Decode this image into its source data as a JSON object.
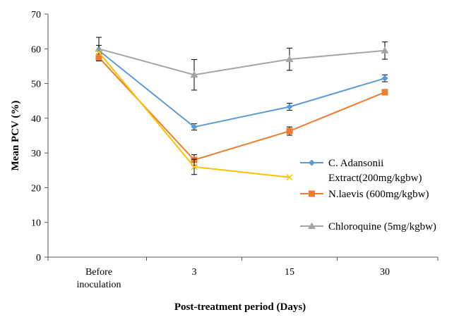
{
  "chart_data": {
    "type": "line",
    "title": "",
    "xlabel": "Post-treatment period (Days)",
    "ylabel": "Mean PCV (%)",
    "ylim": [
      0,
      70
    ],
    "yticks": [
      0,
      10,
      20,
      30,
      40,
      50,
      60,
      70
    ],
    "categories": [
      [
        "Before",
        "inoculation"
      ],
      [
        "3"
      ],
      [
        "15"
      ],
      [
        "30"
      ]
    ],
    "grid": false,
    "legend_position": "right",
    "series": [
      {
        "name": "Chloroquine (5mg/kgbw)",
        "legend_lines": [
          "Chloroquine (5mg/kgbw)"
        ],
        "values": [
          60,
          52.5,
          57,
          59.5
        ],
        "errors": [
          3.3,
          4.4,
          3.2,
          2.5
        ],
        "color": "#a5a5a5",
        "marker": "triangle"
      },
      {
        "name": "C. Adansonii Extract(200mg/kgbw)",
        "legend_lines": [
          "C. Adansonii",
          "Extract(200mg/kgbw)"
        ],
        "values": [
          59.5,
          37.5,
          43.3,
          51.5
        ],
        "errors": [
          1.5,
          0.9,
          1.0,
          1.0
        ],
        "color": "#5b9bd5",
        "marker": "diamond"
      },
      {
        "name": "N.laevis (600mg/kgbw)",
        "legend_lines": [
          "N.laevis (600mg/kgbw)"
        ],
        "values": [
          57.5,
          28,
          36.3,
          47.5
        ],
        "errors": [
          1.0,
          1.5,
          1.2,
          0.8
        ],
        "color": "#ed7d31",
        "marker": "square"
      },
      {
        "name": "",
        "legend_lines": [],
        "values": [
          59,
          26,
          null,
          null
        ],
        "extra_point": 23,
        "errors": [
          0,
          2.2,
          null,
          null
        ],
        "color": "#ffc000",
        "marker": "x"
      }
    ]
  }
}
